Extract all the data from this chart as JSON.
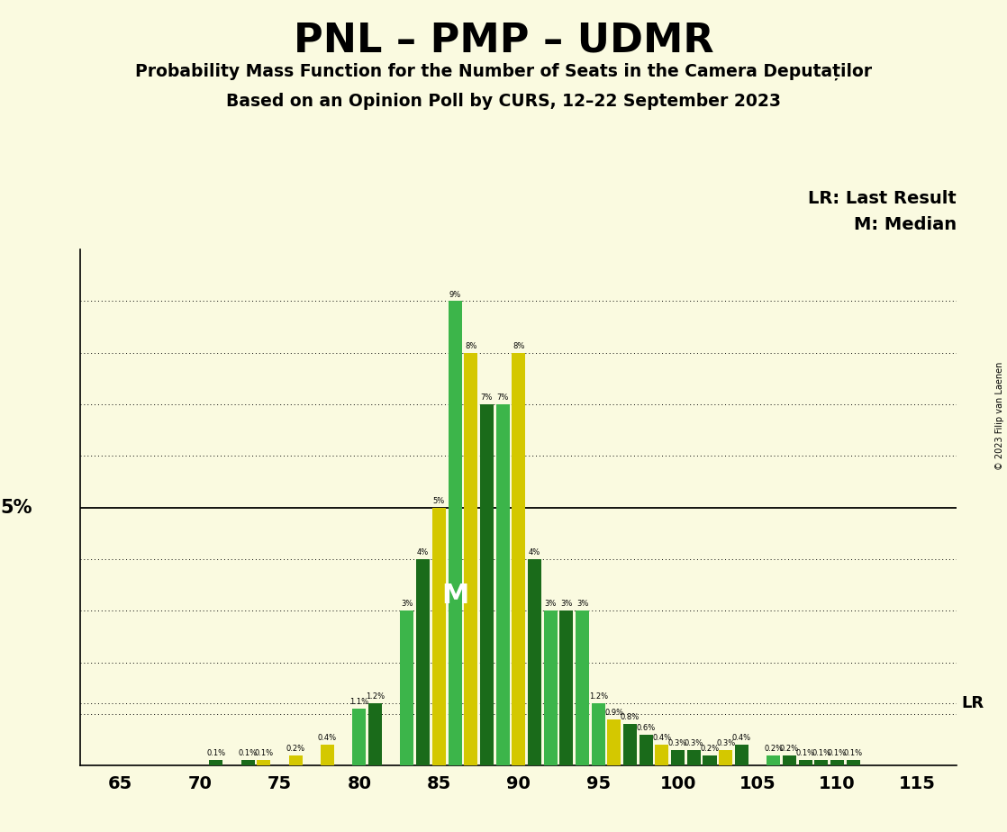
{
  "title": "PNL – PMP – UDMR",
  "subtitle1": "Probability Mass Function for the Number of Seats in the Camera Deputaților",
  "subtitle2": "Based on an Opinion Poll by CURS, 12–22 September 2023",
  "copyright": "© 2023 Filip van Laenen",
  "xlabel_vals": [
    65,
    70,
    75,
    80,
    85,
    90,
    95,
    100,
    105,
    110,
    115
  ],
  "lr_label": "LR: Last Result",
  "m_label": "M: Median",
  "lr_value": 1.2,
  "median_seat": 86,
  "background_color": "#FAFAE0",
  "bar_width": 0.85,
  "color_dark_green": "#1A6B1A",
  "color_light_green": "#3CB54A",
  "color_yellow": "#D4C800",
  "seats": [
    65,
    66,
    67,
    68,
    69,
    70,
    71,
    72,
    73,
    74,
    75,
    76,
    77,
    78,
    79,
    80,
    81,
    82,
    83,
    84,
    85,
    86,
    87,
    88,
    89,
    90,
    91,
    92,
    93,
    94,
    95,
    96,
    97,
    98,
    99,
    100,
    101,
    102,
    103,
    104,
    105,
    106,
    107,
    108,
    109,
    110,
    111,
    112,
    113,
    114,
    115
  ],
  "probabilities": [
    0.0,
    0.0,
    0.0,
    0.0,
    0.0,
    0.0,
    0.1,
    0.0,
    0.1,
    0.1,
    0.0,
    0.2,
    0.0,
    0.4,
    0.0,
    1.1,
    1.2,
    0.0,
    3.0,
    4.0,
    5.0,
    9.0,
    8.0,
    7.0,
    7.0,
    8.0,
    4.0,
    3.0,
    3.0,
    3.0,
    1.2,
    0.9,
    0.8,
    0.6,
    0.4,
    0.3,
    0.3,
    0.2,
    0.3,
    0.4,
    0.0,
    0.2,
    0.2,
    0.1,
    0.1,
    0.1,
    0.1,
    0.0,
    0.0,
    0.0,
    0.0
  ],
  "bar_colors": [
    "dark_green",
    "light_green",
    "dark_green",
    "dark_green",
    "dark_green",
    "dark_green",
    "dark_green",
    "yellow",
    "dark_green",
    "yellow",
    "dark_green",
    "yellow",
    "dark_green",
    "yellow",
    "dark_green",
    "light_green",
    "dark_green",
    "yellow",
    "light_green",
    "dark_green",
    "yellow",
    "light_green",
    "yellow",
    "dark_green",
    "light_green",
    "yellow",
    "dark_green",
    "light_green",
    "dark_green",
    "light_green",
    "light_green",
    "yellow",
    "dark_green",
    "dark_green",
    "yellow",
    "dark_green",
    "dark_green",
    "dark_green",
    "yellow",
    "dark_green",
    "yellow",
    "light_green",
    "dark_green",
    "dark_green",
    "dark_green",
    "dark_green",
    "dark_green",
    "dark_green",
    "dark_green",
    "dark_green",
    "dark_green"
  ],
  "ylim_max": 10.0,
  "five_pct_line": 5.0,
  "grid_lines": [
    1,
    2,
    3,
    4,
    6,
    7,
    8,
    9
  ]
}
